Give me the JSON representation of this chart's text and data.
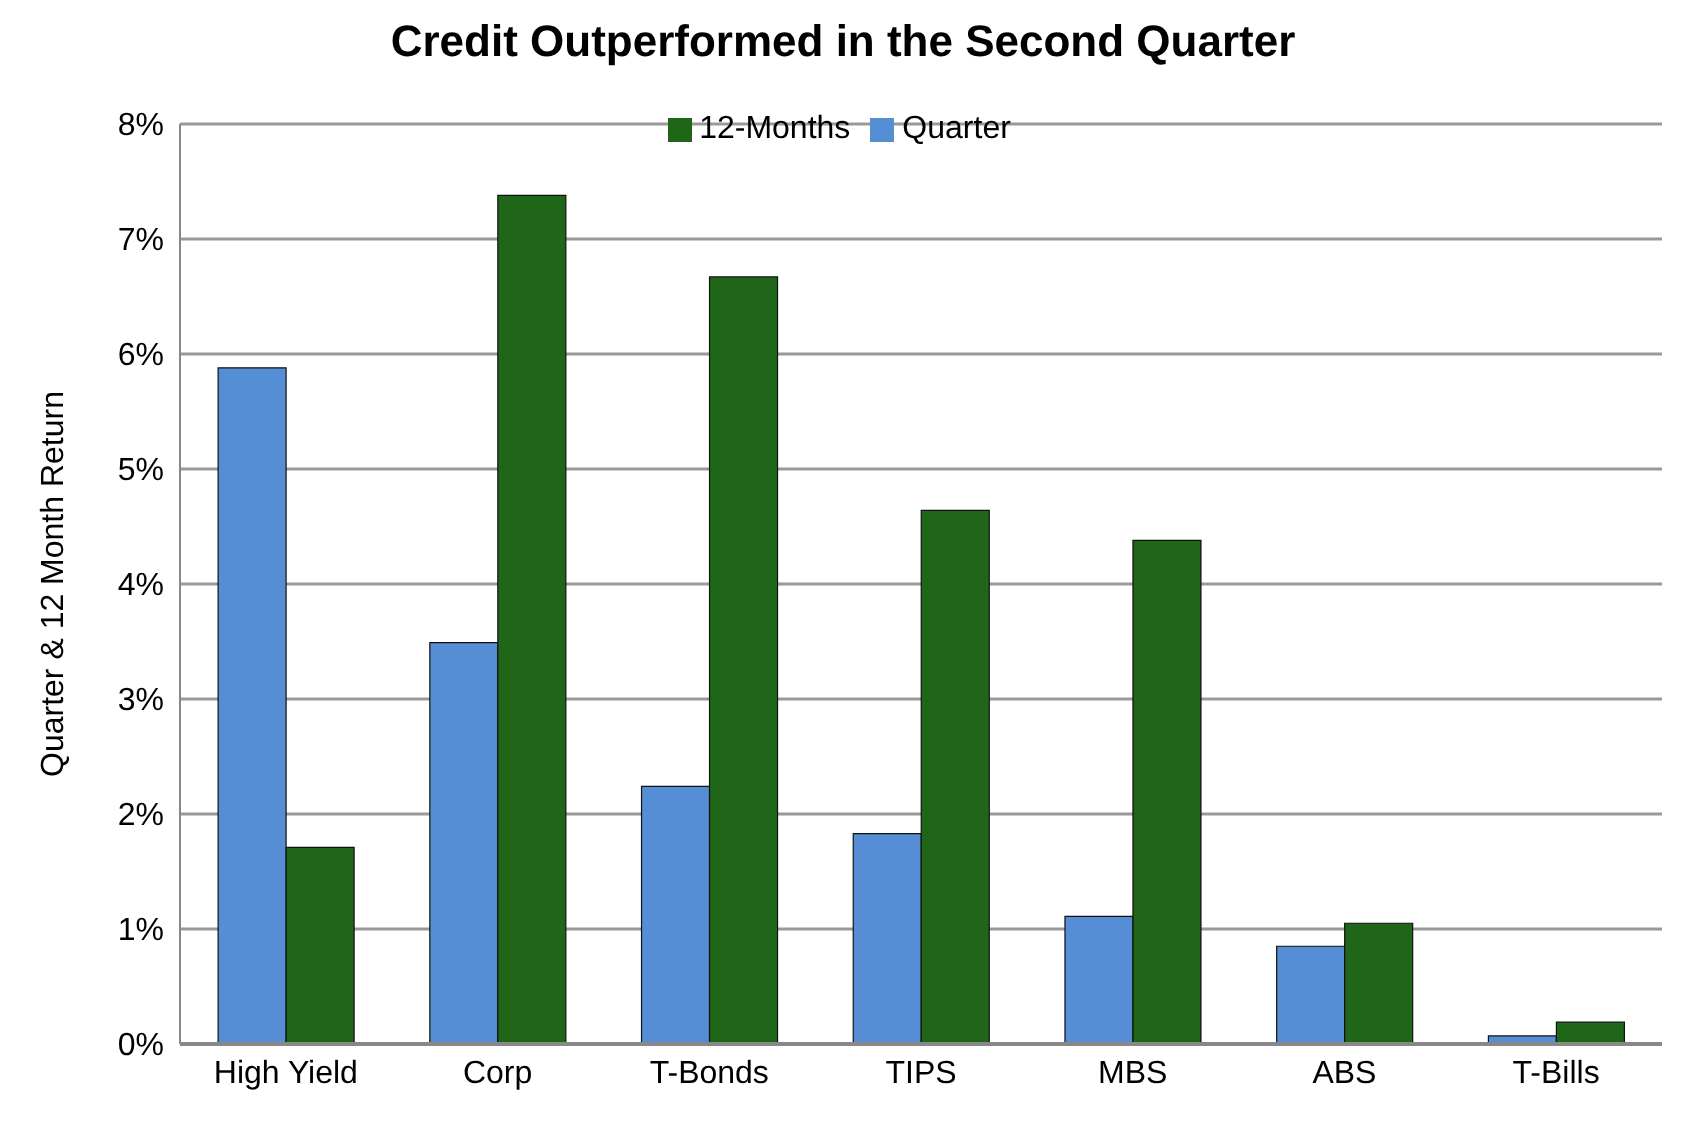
{
  "chart_data": {
    "type": "bar",
    "title": "Credit Outperformed in the Second Quarter",
    "ylabel": "Quarter & 12 Month Return",
    "categories": [
      "High Yield",
      "Corp",
      "T-Bonds",
      "TIPS",
      "MBS",
      "ABS",
      "T-Bills"
    ],
    "series": [
      {
        "name": "Quarter",
        "color": "#558ed5",
        "values": [
          5.88,
          3.49,
          2.24,
          1.83,
          1.11,
          0.85,
          0.07
        ]
      },
      {
        "name": "12-Months",
        "color": "#1f6618",
        "values": [
          1.71,
          7.38,
          6.67,
          4.64,
          4.38,
          1.05,
          0.19
        ]
      }
    ],
    "ylim": [
      0,
      8
    ],
    "yticks": [
      {
        "value": 0,
        "label": "0%"
      },
      {
        "value": 1,
        "label": "1%"
      },
      {
        "value": 2,
        "label": "2%"
      },
      {
        "value": 3,
        "label": "3%"
      },
      {
        "value": 4,
        "label": "4%"
      },
      {
        "value": 5,
        "label": "5%"
      },
      {
        "value": 6,
        "label": "6%"
      },
      {
        "value": 7,
        "label": "7%"
      },
      {
        "value": 8,
        "label": "8%"
      }
    ],
    "grid": "y",
    "legend": "top"
  }
}
